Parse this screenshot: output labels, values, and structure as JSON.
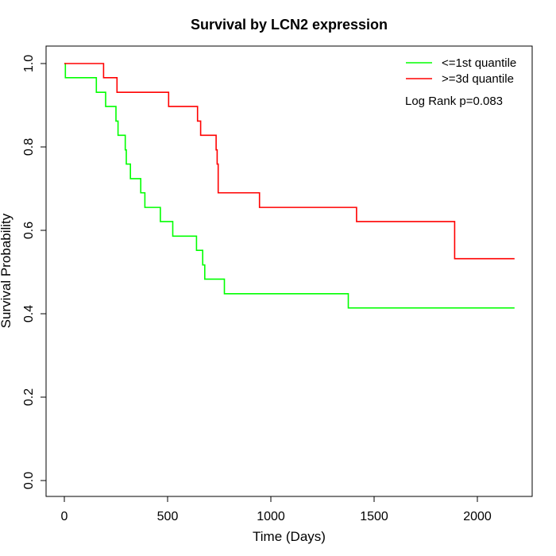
{
  "chart_data": {
    "type": "line",
    "subtype": "kaplan-meier step",
    "title": "Survival by LCN2 expression",
    "xlabel": "Time (Days)",
    "ylabel": "Survival Probability",
    "xlim": [
      0,
      2200
    ],
    "ylim": [
      0,
      1.0
    ],
    "xticks": [
      0,
      500,
      1000,
      1500,
      2000
    ],
    "yticks": [
      0.0,
      0.2,
      0.4,
      0.6,
      0.8,
      1.0
    ],
    "xtick_labels": [
      "0",
      "500",
      "1000",
      "1500",
      "2000"
    ],
    "ytick_labels": [
      "0.0",
      "0.2",
      "0.4",
      "0.6",
      "0.8",
      "1.0"
    ],
    "grid": false,
    "legend_position": "top-right",
    "annotation": "Log Rank p=0.083",
    "series": [
      {
        "name": "<=1st quantile",
        "color": "#00ff00",
        "x": [
          0,
          5,
          155,
          200,
          250,
          253,
          260,
          295,
          300,
          310,
          320,
          370,
          390,
          465,
          525,
          640,
          670,
          680,
          775,
          1375,
          2180
        ],
        "y": [
          1.0,
          0.966,
          0.931,
          0.897,
          0.862,
          0.862,
          0.828,
          0.793,
          0.759,
          0.759,
          0.724,
          0.69,
          0.655,
          0.621,
          0.586,
          0.552,
          0.517,
          0.483,
          0.448,
          0.414,
          0.414
        ]
      },
      {
        "name": ">=3d quantile",
        "color": "#ff0000",
        "x": [
          0,
          190,
          255,
          505,
          645,
          660,
          735,
          740,
          745,
          945,
          1415,
          1890,
          2180
        ],
        "y": [
          1.0,
          0.966,
          0.931,
          0.897,
          0.862,
          0.828,
          0.793,
          0.759,
          0.69,
          0.655,
          0.621,
          0.532,
          0.532
        ]
      }
    ]
  }
}
